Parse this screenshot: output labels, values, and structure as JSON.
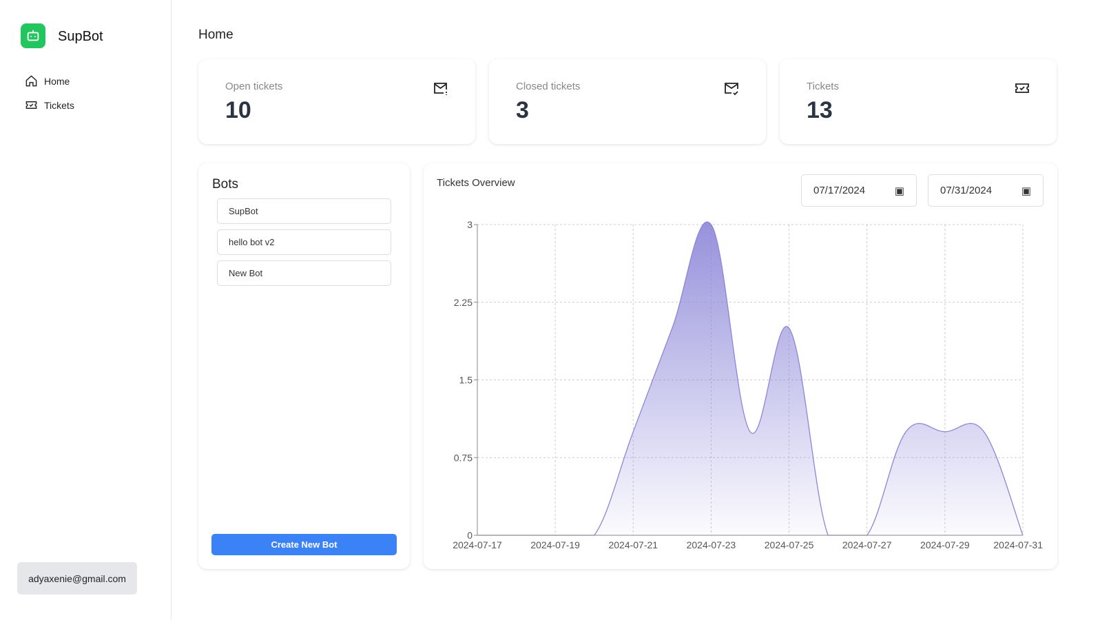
{
  "sidebar": {
    "brand": "SupBot",
    "items": [
      {
        "label": "Home"
      },
      {
        "label": "Tickets"
      }
    ],
    "email": "adyaxenie@gmail.com"
  },
  "header": {
    "title": "Home"
  },
  "stats": [
    {
      "label": "Open tickets",
      "value": "10"
    },
    {
      "label": "Closed tickets",
      "value": "3"
    },
    {
      "label": "Tickets",
      "value": "13"
    }
  ],
  "bots": {
    "title": "Bots",
    "items": [
      "SupBot",
      "hello bot v2",
      "New Bot"
    ],
    "create_label": "Create New Bot"
  },
  "overview": {
    "title": "Tickets Overview",
    "start_date": "07/17/2024",
    "end_date": "07/31/2024"
  },
  "colors": {
    "accent": "#3b82f6",
    "brand": "#22c55e",
    "area": "#8b85d8"
  },
  "chart_data": {
    "type": "area",
    "title": "Tickets Overview",
    "x": [
      "2024-07-17",
      "2024-07-18",
      "2024-07-19",
      "2024-07-20",
      "2024-07-21",
      "2024-07-22",
      "2024-07-23",
      "2024-07-24",
      "2024-07-25",
      "2024-07-26",
      "2024-07-27",
      "2024-07-28",
      "2024-07-29",
      "2024-07-30",
      "2024-07-31"
    ],
    "values": [
      0,
      0,
      0,
      0,
      1,
      2,
      3,
      1,
      2,
      0,
      0,
      1,
      1,
      1,
      0
    ],
    "xticks": [
      "2024-07-17",
      "2024-07-19",
      "2024-07-21",
      "2024-07-23",
      "2024-07-25",
      "2024-07-27",
      "2024-07-29",
      "2024-07-31"
    ],
    "yticks": [
      "0",
      "0.75",
      "1.5",
      "2.25",
      "3"
    ],
    "ylim": [
      0,
      3
    ],
    "grid": true
  }
}
